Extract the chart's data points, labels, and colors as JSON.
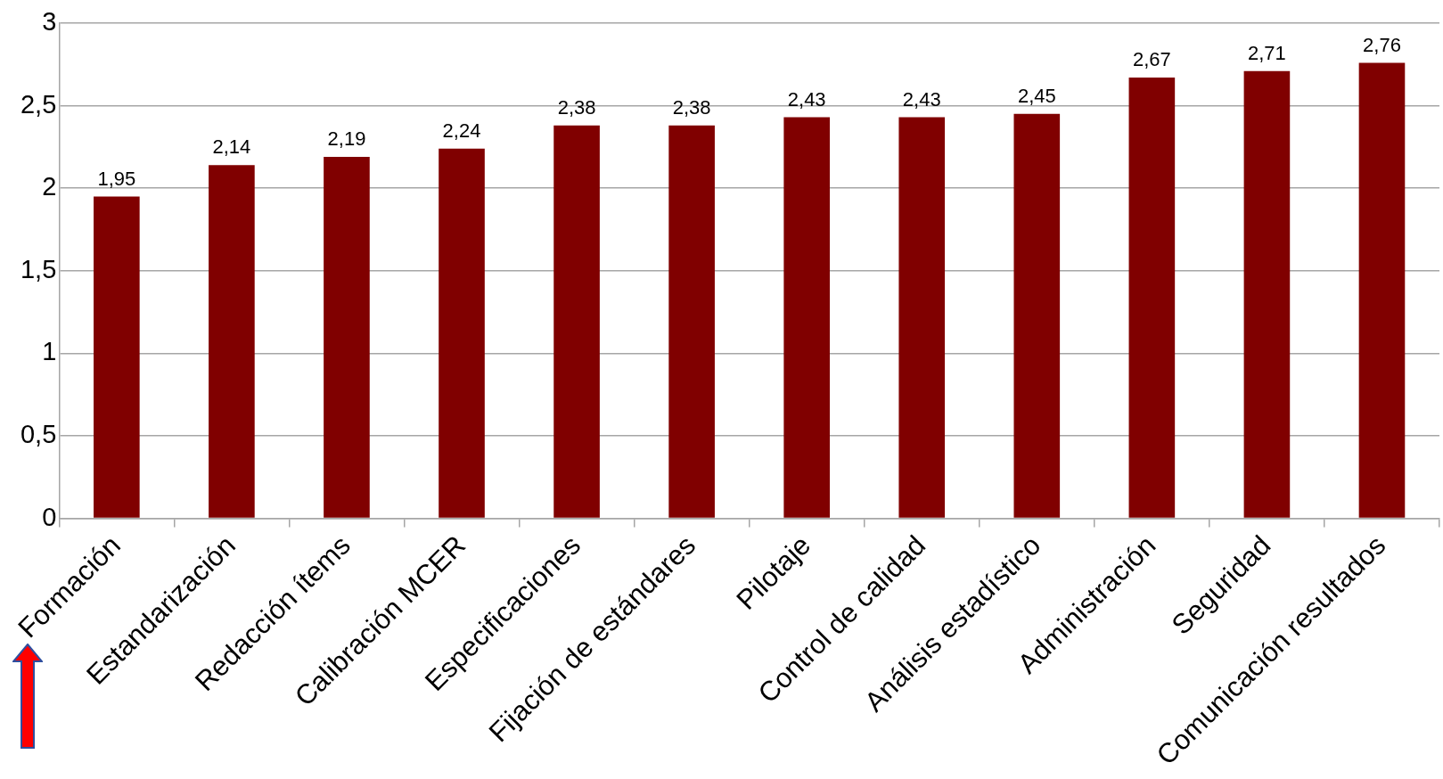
{
  "chart_data": {
    "type": "bar",
    "categories": [
      "Formación",
      "Estandarización",
      "Redacción ítems",
      "Calibración MCER",
      "Especificaciones",
      "Fijación de estándares",
      "Pilotaje",
      "Control de calidad",
      "Análisis estadístico",
      "Administración",
      "Seguridad",
      "Comunicación resultados"
    ],
    "values": [
      1.95,
      2.14,
      2.19,
      2.24,
      2.38,
      2.38,
      2.43,
      2.43,
      2.45,
      2.67,
      2.71,
      2.76
    ],
    "value_labels": [
      "1,95",
      "2,14",
      "2,19",
      "2,24",
      "2,38",
      "2,38",
      "2,43",
      "2,43",
      "2,45",
      "2,67",
      "2,71",
      "2,76"
    ],
    "color": "#800000",
    "ylim": [
      0,
      3
    ],
    "yticks": [
      0,
      {
        "value": 0.5,
        "label": "0,5"
      },
      1,
      {
        "value": 1.5,
        "label": "1,5"
      },
      2,
      {
        "value": 2.5,
        "label": "2,5"
      },
      3
    ],
    "grid": "y",
    "legend": false
  }
}
